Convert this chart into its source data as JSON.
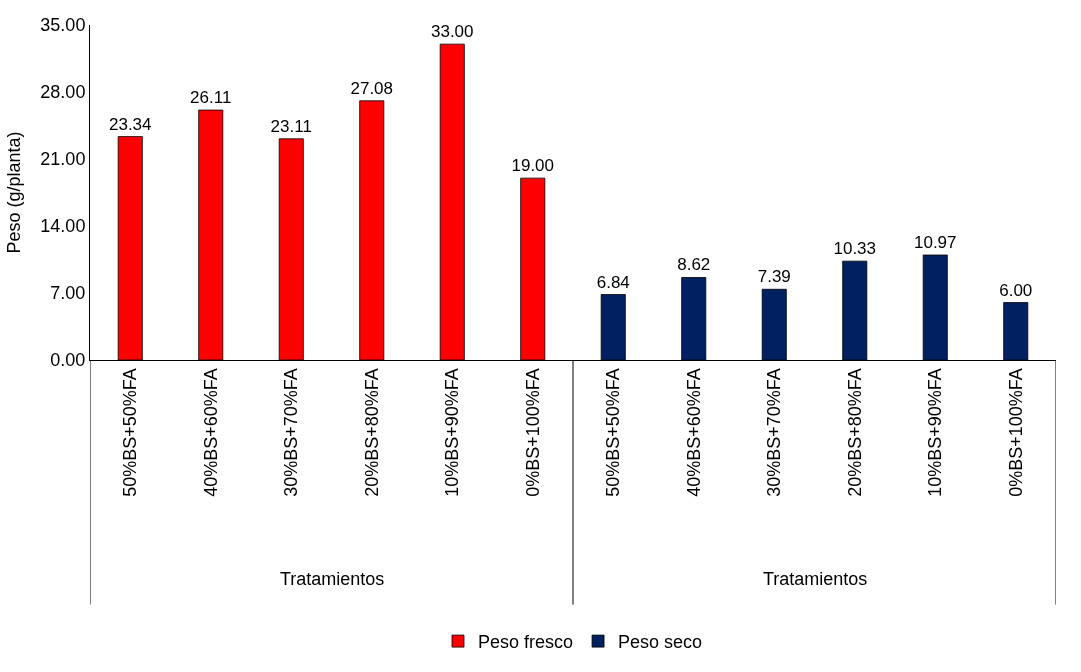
{
  "chart_data": {
    "type": "bar",
    "ylabel": "Peso (g/planta)",
    "categories": [
      "50%BS+50%FA",
      "40%BS+60%FA",
      "30%BS+70%FA",
      "20%BS+80%FA",
      "10%BS+90%FA",
      "0%BS+100%FA",
      "50%BS+50%FA",
      "40%BS+60%FA",
      "30%BS+70%FA",
      "20%BS+80%FA",
      "10%BS+90%FA",
      "0%BS+100%FA"
    ],
    "series": [
      {
        "name": "Peso fresco",
        "color": "#ff0000",
        "values": [
          23.34,
          26.11,
          23.11,
          27.08,
          33.0,
          19.0,
          null,
          null,
          null,
          null,
          null,
          null
        ],
        "value_labels": [
          "23.34",
          "26.11",
          "23.11",
          "27.08",
          "33.00",
          "19.00",
          null,
          null,
          null,
          null,
          null,
          null
        ]
      },
      {
        "name": "Peso seco",
        "color": "#002060",
        "values": [
          null,
          null,
          null,
          null,
          null,
          null,
          6.84,
          8.62,
          7.39,
          10.33,
          10.97,
          6.0
        ],
        "value_labels": [
          null,
          null,
          null,
          null,
          null,
          null,
          "6.84",
          "8.62",
          "7.39",
          "10.33",
          "10.97",
          "6.00"
        ]
      }
    ],
    "annotations": [
      "Tratamientos",
      "Tratamientos"
    ],
    "ylim": [
      0,
      35
    ],
    "yticks": [
      {
        "value": 0,
        "label": "0.00"
      },
      {
        "value": 7,
        "label": "7.00"
      },
      {
        "value": 14,
        "label": "14.00"
      },
      {
        "value": 21,
        "label": "21.00"
      },
      {
        "value": 28,
        "label": "28.00"
      },
      {
        "value": 35,
        "label": "35.00"
      }
    ],
    "legend": "bottom"
  }
}
